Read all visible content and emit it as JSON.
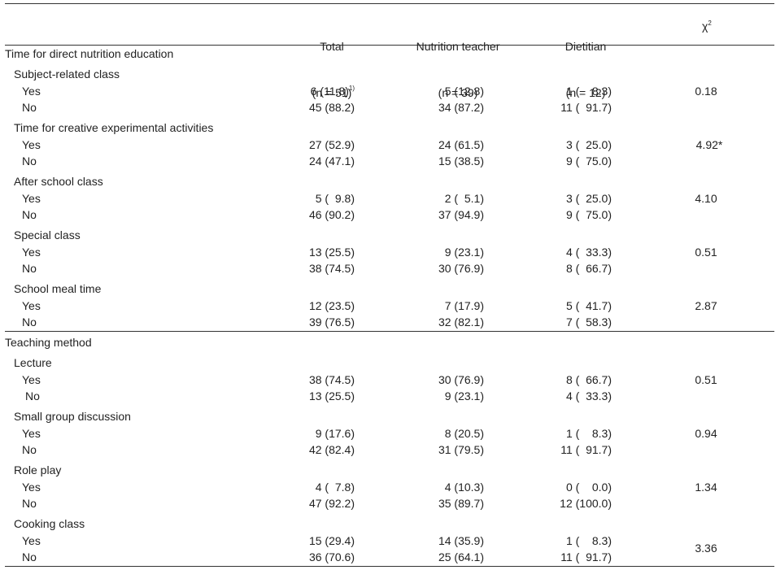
{
  "header": {
    "total": {
      "label": "Total",
      "n": "(n = 51)"
    },
    "nutrition_teacher": {
      "label": "Nutrition teacher",
      "n": "(n = 39)"
    },
    "dietitian": {
      "label": "Dietitian",
      "n": "(n = 12)"
    },
    "chi_label": "χ",
    "chi_sup": "2"
  },
  "sections": [
    {
      "title": "Time for direct nutrition education",
      "groups": [
        {
          "title": "Subject-related class",
          "chi": "0.18",
          "rows": [
            {
              "label": "Yes",
              "total": "6 (11.8)",
              "total_sup": "1)",
              "nt": "5 (12.8)",
              "dt": "1 (    8.3)"
            },
            {
              "label": "No",
              "total": "45 (88.2)",
              "nt": "34 (87.2)",
              "dt": "11 (  91.7)"
            }
          ]
        },
        {
          "title": "Time for creative experimental activities",
          "chi": "4.92*",
          "rows": [
            {
              "label": "Yes",
              "total": "27 (52.9)",
              "nt": "24 (61.5)",
              "dt": "3 (  25.0)"
            },
            {
              "label": "No",
              "total": "24 (47.1)",
              "nt": "15 (38.5)",
              "dt": "9 (  75.0)"
            }
          ]
        },
        {
          "title": "After school class",
          "chi": "4.10",
          "rows": [
            {
              "label": "Yes",
              "total": "5 (  9.8)",
              "nt": "2 (  5.1)",
              "dt": "3 (  25.0)"
            },
            {
              "label": "No",
              "total": "46 (90.2)",
              "nt": "37 (94.9)",
              "dt": "9 (  75.0)"
            }
          ]
        },
        {
          "title": "Special class",
          "chi": "0.51",
          "rows": [
            {
              "label": "Yes",
              "total": "13 (25.5)",
              "nt": "9 (23.1)",
              "dt": "4 (  33.3)"
            },
            {
              "label": "No",
              "total": "38 (74.5)",
              "nt": "30 (76.9)",
              "dt": "8 (  66.7)"
            }
          ]
        },
        {
          "title": "School meal time",
          "chi": "2.87",
          "rows": [
            {
              "label": "Yes",
              "total": "12 (23.5)",
              "nt": "7 (17.9)",
              "dt": "5 (  41.7)"
            },
            {
              "label": "No",
              "total": "39 (76.5)",
              "nt": "32 (82.1)",
              "dt": "7 (  58.3)"
            }
          ]
        }
      ]
    },
    {
      "title": "Teaching method",
      "groups": [
        {
          "title": "Lecture",
          "chi": "0.51",
          "rows": [
            {
              "label": "Yes",
              "total": "38 (74.5)",
              "nt": "30 (76.9)",
              "dt": "8 (  66.7)"
            },
            {
              "label": "No",
              "total": "13 (25.5)",
              "nt": "9 (23.1)",
              "dt": "4 (  33.3)"
            }
          ]
        },
        {
          "title": "Small group discussion",
          "chi": "0.94",
          "rows": [
            {
              "label": "Yes",
              "total": "9 (17.6)",
              "nt": "8 (20.5)",
              "dt": "1 (    8.3)"
            },
            {
              "label": "No",
              "total": "42 (82.4)",
              "nt": "31 (79.5)",
              "dt": "11 (  91.7)"
            }
          ]
        },
        {
          "title": "Role play",
          "chi": "1.34",
          "rows": [
            {
              "label": "Yes",
              "total": "4 (  7.8)",
              "nt": "4 (10.3)",
              "dt": "0 (    0.0)"
            },
            {
              "label": "No",
              "total": "47 (92.2)",
              "nt": "35 (89.7)",
              "dt": "12 (100.0)"
            }
          ]
        },
        {
          "title": "Cooking class",
          "chi": "3.36",
          "rows": [
            {
              "label": "Yes",
              "total": "15 (29.4)",
              "nt": "14 (35.9)",
              "dt": "1 (    8.3)"
            },
            {
              "label": "No",
              "total": "36 (70.6)",
              "nt": "25 (64.1)",
              "dt": "11 (  91.7)"
            }
          ]
        }
      ]
    }
  ]
}
